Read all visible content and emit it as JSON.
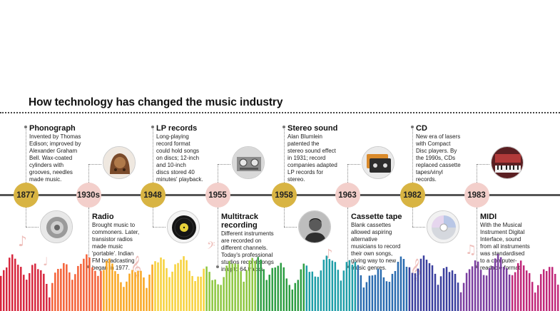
{
  "title": "How technology has changed the music industry",
  "events": [
    {
      "year": "1877",
      "style": "gold",
      "heading": "Phonograph",
      "lines": [
        "Invented by Thomas",
        "Edison; improved by",
        "Alexander Graham",
        "Bell. Wax-coated",
        "cylinders with",
        "grooves, needles",
        "made music."
      ],
      "position": "above",
      "image": "phonograph-horn-icon"
    },
    {
      "year": "1930s",
      "style": "pink",
      "heading": "Radio",
      "lines": [
        "Brought music to",
        "commoners. Later,",
        "transistor radios",
        "made music",
        "'portable'. Indian",
        "FM broadcasting",
        "began in 1977."
      ],
      "position": "below",
      "image": "vintage-radio-icon"
    },
    {
      "year": "1948",
      "style": "gold",
      "heading": "LP records",
      "lines": [
        "Long-playing",
        "record format",
        "could hold songs",
        "on discs; 12-inch",
        "and 10-inch",
        "discs stored 40",
        "minutes' playback."
      ],
      "position": "above",
      "image": "vinyl-record-icon"
    },
    {
      "year": "1955",
      "style": "pink",
      "heading": "Multitrack recording",
      "heading_lines": [
        "Multitrack",
        "recording"
      ],
      "lines": [
        "Different instruments",
        "are recorded on",
        "different channels.",
        "Today's professional",
        "studios record songs",
        "in upto 64 tracks."
      ],
      "position": "below",
      "image": "tape-recorder-icon"
    },
    {
      "year": "1958",
      "style": "gold",
      "heading": "Stereo sound",
      "lines": [
        "Alan Blumlein",
        "patented the",
        "stereo sound effect",
        "in 1931; record",
        "companies adapted",
        "LP records for",
        "stereo."
      ],
      "position": "above",
      "image": "portrait-icon"
    },
    {
      "year": "1963",
      "style": "pink",
      "heading": "Cassette tape",
      "lines": [
        "Blank cassettes",
        "allowed aspiring",
        "alternative",
        "musicians to record",
        "their own songs,",
        "giving way to new",
        "music genres."
      ],
      "position": "below",
      "image": "cassette-tape-icon"
    },
    {
      "year": "1982",
      "style": "gold",
      "heading": "CD",
      "lines": [
        "New era of lasers",
        "with Compact",
        "Disc players. By",
        "the 1990s, CDs",
        "replaced cassette",
        "tapes/vinyl",
        "records."
      ],
      "position": "above",
      "image": "compact-disc-icon"
    },
    {
      "year": "1983",
      "style": "pink",
      "heading": "MIDI",
      "lines": [
        "With the Musical",
        "Instrument Digital",
        "Interface, sound",
        "from all instruments",
        "was standardised",
        "to a computer-",
        "readable format."
      ],
      "position": "below",
      "image": "synthesizer-icon"
    }
  ],
  "colors": {
    "gold": "#d8b443",
    "pink": "#f3cfcb",
    "spectrum": [
      "#d7263d",
      "#f46036",
      "#f9a620",
      "#f6d13a",
      "#8cc63f",
      "#2e9e44",
      "#1f9ea8",
      "#2b6cb0",
      "#3a3f9e",
      "#7b3fa0",
      "#c0287a"
    ]
  }
}
